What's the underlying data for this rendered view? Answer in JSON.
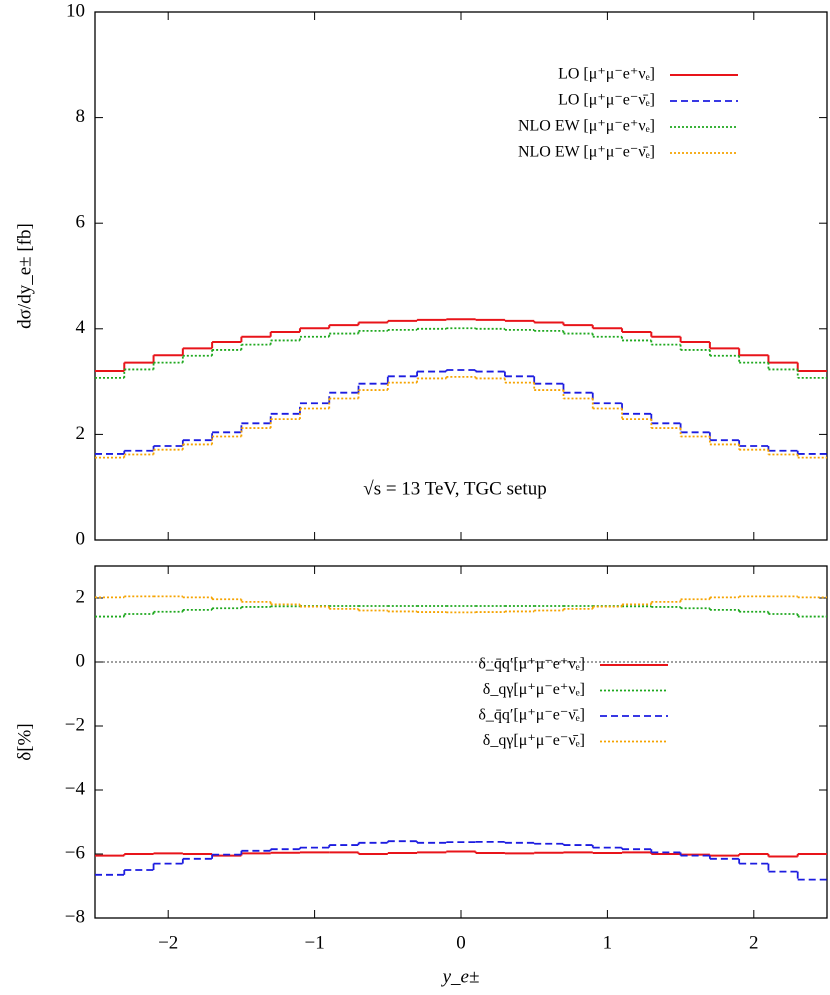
{
  "chart_data": [
    {
      "type": "histogram",
      "ylabel": "dσ/dy_e± [fb]",
      "annotation": "√s = 13 TeV, TGC setup",
      "bins": [
        -2.5,
        -2.3,
        -2.1,
        -1.9,
        -1.7,
        -1.5,
        -1.3,
        -1.1,
        -0.9,
        -0.7,
        -0.5,
        -0.3,
        -0.1,
        0.1,
        0.3,
        0.5,
        0.7,
        0.9,
        1.1,
        1.3,
        1.5,
        1.7,
        1.9,
        2.1,
        2.3,
        2.5
      ],
      "xlim": [
        -2.5,
        2.5
      ],
      "ylim": [
        0,
        10
      ],
      "yticks": [
        0,
        2,
        4,
        6,
        8,
        10
      ],
      "series": [
        {
          "name": "LO  [μ⁺μ⁻e⁺νₑ]",
          "color": "#e8141a",
          "dash": "solid",
          "values": [
            3.2,
            3.36,
            3.5,
            3.63,
            3.75,
            3.85,
            3.94,
            4.01,
            4.07,
            4.12,
            4.15,
            4.17,
            4.18,
            4.17,
            4.15,
            4.12,
            4.07,
            4.01,
            3.94,
            3.85,
            3.75,
            3.63,
            3.5,
            3.36,
            3.2
          ]
        },
        {
          "name": "LO  [μ⁺μ⁻e⁻ν̄ₑ]",
          "color": "#1c1ce0",
          "dash": "dashed",
          "values": [
            1.63,
            1.69,
            1.78,
            1.89,
            2.04,
            2.21,
            2.39,
            2.59,
            2.79,
            2.96,
            3.1,
            3.19,
            3.22,
            3.19,
            3.1,
            2.96,
            2.79,
            2.59,
            2.39,
            2.21,
            2.04,
            1.89,
            1.78,
            1.69,
            1.63
          ]
        },
        {
          "name": "NLO EW  [μ⁺μ⁻e⁺νₑ]",
          "color": "#1ea81e",
          "dash": "dotted",
          "values": [
            3.07,
            3.23,
            3.36,
            3.49,
            3.6,
            3.7,
            3.78,
            3.85,
            3.91,
            3.96,
            3.98,
            4.0,
            4.01,
            4.0,
            3.98,
            3.96,
            3.91,
            3.85,
            3.78,
            3.7,
            3.6,
            3.49,
            3.36,
            3.23,
            3.07
          ]
        },
        {
          "name": "NLO EW  [μ⁺μ⁻e⁻ν̄ₑ]",
          "color": "#f5a300",
          "dash": "dotted",
          "values": [
            1.56,
            1.62,
            1.71,
            1.81,
            1.96,
            2.12,
            2.29,
            2.49,
            2.68,
            2.84,
            2.98,
            3.06,
            3.09,
            3.06,
            2.98,
            2.84,
            2.68,
            2.49,
            2.29,
            2.12,
            1.96,
            1.81,
            1.71,
            1.62,
            1.56
          ]
        }
      ]
    },
    {
      "type": "histogram",
      "xlabel": "y_e±",
      "ylabel": "δ[%]",
      "bins": [
        -2.5,
        -2.3,
        -2.1,
        -1.9,
        -1.7,
        -1.5,
        -1.3,
        -1.1,
        -0.9,
        -0.7,
        -0.5,
        -0.3,
        -0.1,
        0.1,
        0.3,
        0.5,
        0.7,
        0.9,
        1.1,
        1.3,
        1.5,
        1.7,
        1.9,
        2.1,
        2.3,
        2.5
      ],
      "xlim": [
        -2.5,
        2.5
      ],
      "xticks": [
        {
          "value": -2,
          "label": "−2"
        },
        {
          "value": -1,
          "label": "−1"
        },
        0,
        1,
        2
      ],
      "ylim": [
        -8,
        3
      ],
      "yticks": [
        {
          "value": -8,
          "label": "−8"
        },
        {
          "value": -6,
          "label": "−6"
        },
        {
          "value": -4,
          "label": "−4"
        },
        {
          "value": -2,
          "label": "−2"
        },
        0,
        2
      ],
      "hline": 0,
      "series": [
        {
          "name": "δ_q̄q′[μ⁺μ⁻e⁺νₑ]",
          "color": "#e8141a",
          "dash": "solid",
          "values": [
            -6.05,
            -6.0,
            -5.98,
            -6.0,
            -6.05,
            -5.98,
            -5.96,
            -5.95,
            -5.95,
            -6.0,
            -5.97,
            -5.95,
            -5.92,
            -5.97,
            -5.98,
            -5.96,
            -5.95,
            -5.97,
            -5.95,
            -6.0,
            -6.02,
            -6.05,
            -6.0,
            -6.08,
            -6.0
          ]
        },
        {
          "name": "δ_qγ[μ⁺μ⁻e⁺νₑ]",
          "color": "#1ea81e",
          "dash": "dotted",
          "values": [
            1.42,
            1.5,
            1.57,
            1.63,
            1.68,
            1.72,
            1.74,
            1.75,
            1.75,
            1.75,
            1.75,
            1.75,
            1.75,
            1.75,
            1.75,
            1.75,
            1.75,
            1.75,
            1.74,
            1.72,
            1.68,
            1.63,
            1.57,
            1.5,
            1.42
          ]
        },
        {
          "name": "δ_q̄q′[μ⁺μ⁻e⁻ν̄ₑ]",
          "color": "#1c1ce0",
          "dash": "dashed",
          "values": [
            -6.65,
            -6.5,
            -6.3,
            -6.15,
            -6.02,
            -5.9,
            -5.85,
            -5.8,
            -5.72,
            -5.65,
            -5.6,
            -5.65,
            -5.63,
            -5.62,
            -5.65,
            -5.68,
            -5.72,
            -5.8,
            -5.85,
            -5.95,
            -6.05,
            -6.15,
            -6.3,
            -6.55,
            -6.8
          ]
        },
        {
          "name": "δ_qγ[μ⁺μ⁻e⁻ν̄ₑ]",
          "color": "#f5a300",
          "dash": "dotted",
          "values": [
            2.02,
            2.05,
            2.05,
            2.02,
            1.96,
            1.88,
            1.8,
            1.73,
            1.66,
            1.61,
            1.58,
            1.56,
            1.55,
            1.56,
            1.58,
            1.61,
            1.66,
            1.73,
            1.8,
            1.88,
            1.96,
            2.02,
            2.05,
            2.05,
            2.02
          ]
        }
      ]
    }
  ]
}
